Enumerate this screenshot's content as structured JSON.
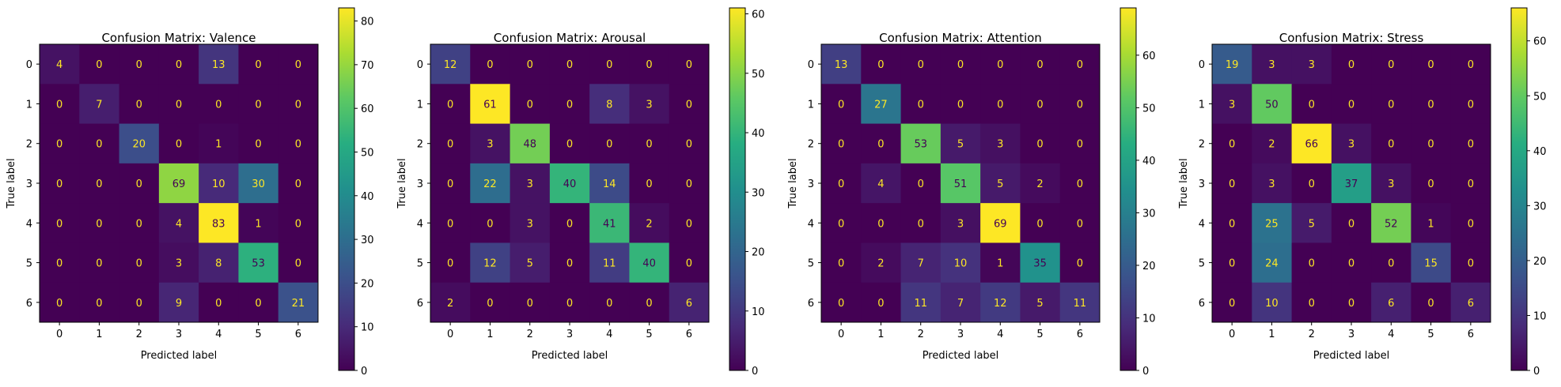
{
  "chart_data": [
    {
      "type": "heatmap",
      "title": "Confusion Matrix: Valence",
      "xlabel": "Predicted label",
      "ylabel": "True label",
      "x_tick_labels": [
        "0",
        "1",
        "2",
        "3",
        "4",
        "5",
        "6"
      ],
      "y_tick_labels": [
        "0",
        "1",
        "2",
        "3",
        "4",
        "5",
        "6"
      ],
      "matrix": [
        [
          4,
          0,
          0,
          0,
          13,
          0,
          0
        ],
        [
          0,
          7,
          0,
          0,
          0,
          0,
          0
        ],
        [
          0,
          0,
          20,
          0,
          1,
          0,
          0
        ],
        [
          0,
          0,
          0,
          69,
          10,
          30,
          0
        ],
        [
          0,
          0,
          0,
          4,
          83,
          1,
          0
        ],
        [
          0,
          0,
          0,
          3,
          8,
          53,
          0
        ],
        [
          0,
          0,
          0,
          9,
          0,
          0,
          21
        ]
      ],
      "colorbar": {
        "min": 0,
        "max": 83,
        "ticks": [
          0,
          10,
          20,
          30,
          40,
          50,
          60,
          70,
          80
        ]
      },
      "colormap": "viridis"
    },
    {
      "type": "heatmap",
      "title": "Confusion Matrix: Arousal",
      "xlabel": "Predicted label",
      "ylabel": "True label",
      "x_tick_labels": [
        "0",
        "1",
        "2",
        "3",
        "4",
        "5",
        "6"
      ],
      "y_tick_labels": [
        "0",
        "1",
        "2",
        "3",
        "4",
        "5",
        "6"
      ],
      "matrix": [
        [
          12,
          0,
          0,
          0,
          0,
          0,
          0
        ],
        [
          0,
          61,
          0,
          0,
          8,
          3,
          0
        ],
        [
          0,
          3,
          48,
          0,
          0,
          0,
          0
        ],
        [
          0,
          22,
          3,
          40,
          14,
          0,
          0
        ],
        [
          0,
          0,
          3,
          0,
          41,
          2,
          0
        ],
        [
          0,
          12,
          5,
          0,
          11,
          40,
          0
        ],
        [
          2,
          0,
          0,
          0,
          0,
          0,
          6
        ]
      ],
      "colorbar": {
        "min": 0,
        "max": 61,
        "ticks": [
          0,
          10,
          20,
          30,
          40,
          50,
          60
        ]
      },
      "colormap": "viridis"
    },
    {
      "type": "heatmap",
      "title": "Confusion Matrix: Attention",
      "xlabel": "Predicted label",
      "ylabel": "True label",
      "x_tick_labels": [
        "0",
        "1",
        "2",
        "3",
        "4",
        "5",
        "6"
      ],
      "y_tick_labels": [
        "0",
        "1",
        "2",
        "3",
        "4",
        "5",
        "6"
      ],
      "matrix": [
        [
          13,
          0,
          0,
          0,
          0,
          0,
          0
        ],
        [
          0,
          27,
          0,
          0,
          0,
          0,
          0
        ],
        [
          0,
          0,
          53,
          5,
          3,
          0,
          0
        ],
        [
          0,
          4,
          0,
          51,
          5,
          2,
          0
        ],
        [
          0,
          0,
          0,
          3,
          69,
          0,
          0
        ],
        [
          0,
          2,
          7,
          10,
          1,
          35,
          0
        ],
        [
          0,
          0,
          11,
          7,
          12,
          5,
          11
        ]
      ],
      "colorbar": {
        "min": 0,
        "max": 69,
        "ticks": [
          0,
          10,
          20,
          30,
          40,
          50,
          60
        ]
      },
      "colormap": "viridis"
    },
    {
      "type": "heatmap",
      "title": "Confusion Matrix: Stress",
      "xlabel": "Predicted label",
      "ylabel": "True label",
      "x_tick_labels": [
        "0",
        "1",
        "2",
        "3",
        "4",
        "5",
        "6"
      ],
      "y_tick_labels": [
        "0",
        "1",
        "2",
        "3",
        "4",
        "5",
        "6"
      ],
      "matrix": [
        [
          19,
          3,
          3,
          0,
          0,
          0,
          0
        ],
        [
          3,
          50,
          0,
          0,
          0,
          0,
          0
        ],
        [
          0,
          2,
          66,
          3,
          0,
          0,
          0
        ],
        [
          0,
          3,
          0,
          37,
          3,
          0,
          0
        ],
        [
          0,
          25,
          5,
          0,
          52,
          1,
          0
        ],
        [
          0,
          24,
          0,
          0,
          0,
          15,
          0
        ],
        [
          0,
          10,
          0,
          0,
          6,
          0,
          6
        ]
      ],
      "colorbar": {
        "min": 0,
        "max": 66,
        "ticks": [
          0,
          10,
          20,
          30,
          40,
          50,
          60
        ]
      },
      "colormap": "viridis"
    }
  ]
}
